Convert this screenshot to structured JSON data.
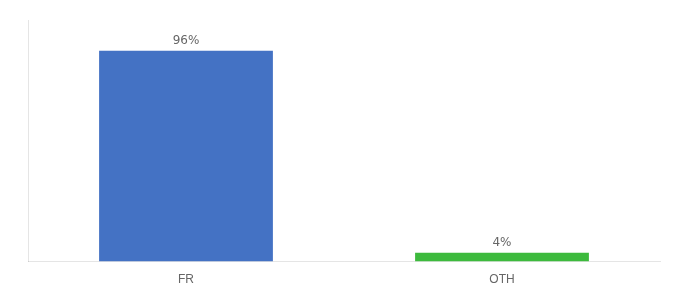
{
  "chart_data": {
    "type": "bar",
    "categories": [
      "FR",
      "OTH"
    ],
    "values": [
      96,
      4
    ],
    "value_labels": [
      "96%",
      "4%"
    ],
    "colors": [
      "#4472c4",
      "#3dba3d"
    ],
    "ylim": [
      0,
      110
    ],
    "grid": false,
    "data_labels": true,
    "tick_labels": "x"
  }
}
